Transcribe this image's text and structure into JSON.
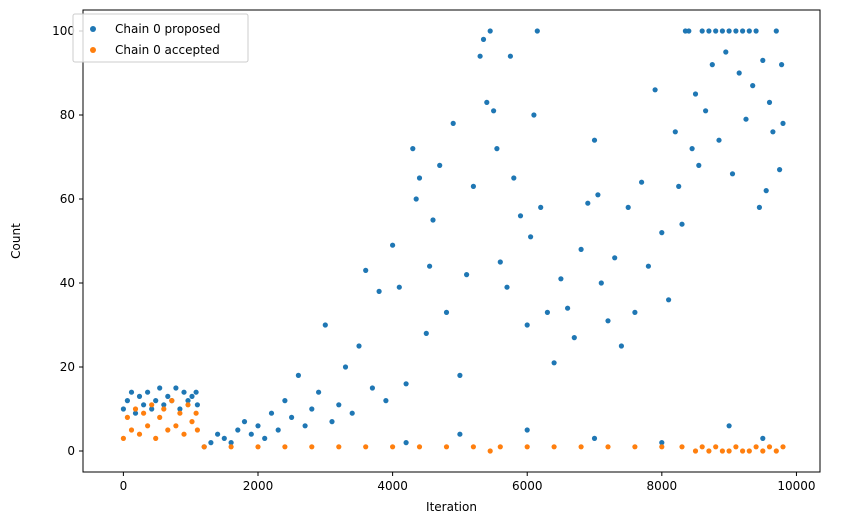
{
  "chart_data": {
    "type": "scatter",
    "xlabel": "Iteration",
    "ylabel": "Count",
    "xlim": [
      -600,
      10350
    ],
    "ylim": [
      -5,
      105
    ],
    "x_ticks": [
      0,
      2000,
      4000,
      6000,
      8000,
      10000
    ],
    "x_tick_labels": [
      "0",
      "2000",
      "4000",
      "6000",
      "8000",
      "10000"
    ],
    "y_ticks": [
      0,
      20,
      40,
      60,
      80,
      100
    ],
    "y_tick_labels": [
      "0",
      "20",
      "40",
      "60",
      "80",
      "100"
    ],
    "grid": false,
    "legend_position": "upper-left",
    "series": [
      {
        "name": "Chain 0 proposed",
        "color": "#1f77b4",
        "points": [
          [
            0,
            10
          ],
          [
            60,
            12
          ],
          [
            120,
            14
          ],
          [
            180,
            9
          ],
          [
            240,
            13
          ],
          [
            300,
            11
          ],
          [
            360,
            14
          ],
          [
            420,
            10
          ],
          [
            480,
            12
          ],
          [
            540,
            15
          ],
          [
            600,
            11
          ],
          [
            660,
            13
          ],
          [
            720,
            12
          ],
          [
            780,
            15
          ],
          [
            840,
            10
          ],
          [
            900,
            14
          ],
          [
            960,
            12
          ],
          [
            1020,
            13
          ],
          [
            1080,
            14
          ],
          [
            1100,
            11
          ],
          [
            1200,
            1
          ],
          [
            1300,
            2
          ],
          [
            1400,
            4
          ],
          [
            1500,
            3
          ],
          [
            1600,
            2
          ],
          [
            1700,
            5
          ],
          [
            1800,
            7
          ],
          [
            1900,
            4
          ],
          [
            2000,
            6
          ],
          [
            2100,
            3
          ],
          [
            2200,
            9
          ],
          [
            2300,
            5
          ],
          [
            2400,
            12
          ],
          [
            2500,
            8
          ],
          [
            2600,
            18
          ],
          [
            2700,
            6
          ],
          [
            2800,
            10
          ],
          [
            2900,
            14
          ],
          [
            3000,
            30
          ],
          [
            3100,
            7
          ],
          [
            3200,
            11
          ],
          [
            3300,
            20
          ],
          [
            3400,
            9
          ],
          [
            3500,
            25
          ],
          [
            3600,
            43
          ],
          [
            3700,
            15
          ],
          [
            3800,
            38
          ],
          [
            3900,
            12
          ],
          [
            4000,
            49
          ],
          [
            4100,
            39
          ],
          [
            4200,
            16
          ],
          [
            4300,
            72
          ],
          [
            4350,
            60
          ],
          [
            4400,
            65
          ],
          [
            4500,
            28
          ],
          [
            4550,
            44
          ],
          [
            4600,
            55
          ],
          [
            4700,
            68
          ],
          [
            4800,
            33
          ],
          [
            4900,
            78
          ],
          [
            5000,
            18
          ],
          [
            5100,
            42
          ],
          [
            5200,
            63
          ],
          [
            5300,
            94
          ],
          [
            5350,
            98
          ],
          [
            5400,
            83
          ],
          [
            5450,
            100
          ],
          [
            5500,
            81
          ],
          [
            5550,
            72
          ],
          [
            5600,
            45
          ],
          [
            5700,
            39
          ],
          [
            5750,
            94
          ],
          [
            5800,
            65
          ],
          [
            5900,
            56
          ],
          [
            6000,
            30
          ],
          [
            6050,
            51
          ],
          [
            6100,
            80
          ],
          [
            6150,
            100
          ],
          [
            6200,
            58
          ],
          [
            6300,
            33
          ],
          [
            6400,
            21
          ],
          [
            6500,
            41
          ],
          [
            6600,
            34
          ],
          [
            6700,
            27
          ],
          [
            6800,
            48
          ],
          [
            6900,
            59
          ],
          [
            7000,
            74
          ],
          [
            7050,
            61
          ],
          [
            7100,
            40
          ],
          [
            7200,
            31
          ],
          [
            7300,
            46
          ],
          [
            7400,
            25
          ],
          [
            7500,
            58
          ],
          [
            7600,
            33
          ],
          [
            7700,
            64
          ],
          [
            7800,
            44
          ],
          [
            7900,
            86
          ],
          [
            8000,
            52
          ],
          [
            8100,
            36
          ],
          [
            8200,
            76
          ],
          [
            8250,
            63
          ],
          [
            8300,
            54
          ],
          [
            8350,
            100
          ],
          [
            8400,
            100
          ],
          [
            8450,
            72
          ],
          [
            8500,
            85
          ],
          [
            8550,
            68
          ],
          [
            8600,
            100
          ],
          [
            8650,
            81
          ],
          [
            8700,
            100
          ],
          [
            8750,
            92
          ],
          [
            8800,
            100
          ],
          [
            8850,
            74
          ],
          [
            8900,
            100
          ],
          [
            8950,
            95
          ],
          [
            9000,
            100
          ],
          [
            9050,
            66
          ],
          [
            9100,
            100
          ],
          [
            9150,
            90
          ],
          [
            9200,
            100
          ],
          [
            9250,
            79
          ],
          [
            9300,
            100
          ],
          [
            9350,
            87
          ],
          [
            9400,
            100
          ],
          [
            9450,
            58
          ],
          [
            9500,
            93
          ],
          [
            9550,
            62
          ],
          [
            9600,
            83
          ],
          [
            9650,
            76
          ],
          [
            9700,
            100
          ],
          [
            9750,
            67
          ],
          [
            9780,
            92
          ],
          [
            9800,
            78
          ],
          [
            5000,
            4
          ],
          [
            6000,
            5
          ],
          [
            7000,
            3
          ],
          [
            8000,
            2
          ],
          [
            9000,
            6
          ],
          [
            9500,
            3
          ],
          [
            4200,
            2
          ]
        ]
      },
      {
        "name": "Chain 0 accepted",
        "color": "#ff7f0e",
        "points": [
          [
            0,
            3
          ],
          [
            60,
            8
          ],
          [
            120,
            5
          ],
          [
            180,
            10
          ],
          [
            240,
            4
          ],
          [
            300,
            9
          ],
          [
            360,
            6
          ],
          [
            420,
            11
          ],
          [
            480,
            3
          ],
          [
            540,
            8
          ],
          [
            600,
            10
          ],
          [
            660,
            5
          ],
          [
            720,
            12
          ],
          [
            780,
            6
          ],
          [
            840,
            9
          ],
          [
            900,
            4
          ],
          [
            960,
            11
          ],
          [
            1020,
            7
          ],
          [
            1080,
            9
          ],
          [
            1100,
            5
          ],
          [
            1200,
            1
          ],
          [
            1600,
            1
          ],
          [
            2000,
            1
          ],
          [
            2400,
            1
          ],
          [
            2800,
            1
          ],
          [
            3200,
            1
          ],
          [
            3600,
            1
          ],
          [
            4000,
            1
          ],
          [
            4400,
            1
          ],
          [
            4800,
            1
          ],
          [
            5200,
            1
          ],
          [
            5450,
            0
          ],
          [
            5600,
            1
          ],
          [
            6000,
            1
          ],
          [
            6400,
            1
          ],
          [
            6800,
            1
          ],
          [
            7200,
            1
          ],
          [
            7600,
            1
          ],
          [
            8000,
            1
          ],
          [
            8300,
            1
          ],
          [
            8500,
            0
          ],
          [
            8600,
            1
          ],
          [
            8700,
            0
          ],
          [
            8800,
            1
          ],
          [
            8900,
            0
          ],
          [
            9000,
            0
          ],
          [
            9100,
            1
          ],
          [
            9200,
            0
          ],
          [
            9300,
            0
          ],
          [
            9400,
            1
          ],
          [
            9500,
            0
          ],
          [
            9600,
            1
          ],
          [
            9700,
            0
          ],
          [
            9800,
            1
          ]
        ]
      }
    ]
  }
}
